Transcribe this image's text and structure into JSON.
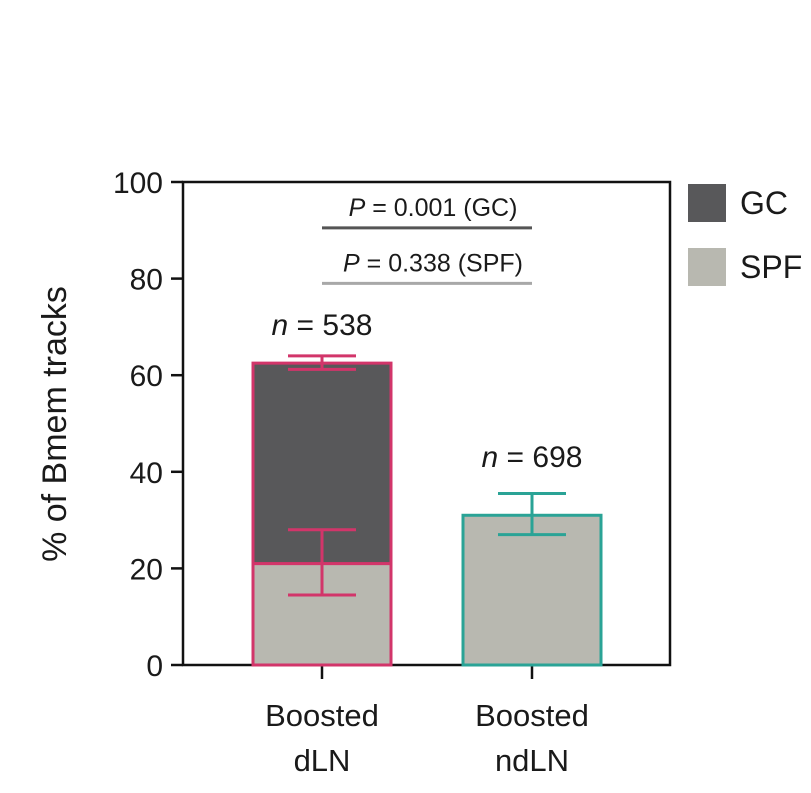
{
  "chart_data": {
    "type": "bar",
    "stacked": true,
    "categories": [
      "Boosted\ndLN",
      "Boosted\nndLN"
    ],
    "category_lines": [
      [
        "Boosted",
        "dLN"
      ],
      [
        "Boosted",
        "ndLN"
      ]
    ],
    "series": [
      {
        "name": "SPF",
        "values": [
          21,
          31
        ],
        "error_low": [
          14.5,
          27
        ],
        "error_high": [
          28,
          35.5
        ],
        "color": "#b8b8b0"
      },
      {
        "name": "GC",
        "values": [
          41.5,
          0
        ],
        "error_low": [
          61.2,
          null
        ],
        "error_high": [
          64,
          null
        ],
        "color": "#58585a"
      }
    ],
    "bar_outline_colors": [
      "#d2356a",
      "#2aa396"
    ],
    "n_labels": [
      {
        "italic": "n",
        "rest": " = 538"
      },
      {
        "italic": "n",
        "rest": " = 698"
      }
    ],
    "comparisons": [
      {
        "italic": "P",
        "rest": " = 0.001 (GC)",
        "line_color": "#555555",
        "y": 90.5
      },
      {
        "italic": "P",
        "rest": " = 0.338 (SPF)",
        "line_color": "#a8a8a8",
        "y": 79
      }
    ],
    "ylabel": "% of Bmem tracks",
    "xlabel": "",
    "title": "",
    "ylim": [
      0,
      100
    ],
    "yticks": [
      0,
      20,
      40,
      60,
      80,
      100
    ],
    "legend": {
      "position": "top-right",
      "entries": [
        "GC",
        "SPF"
      ]
    },
    "grid": false
  }
}
